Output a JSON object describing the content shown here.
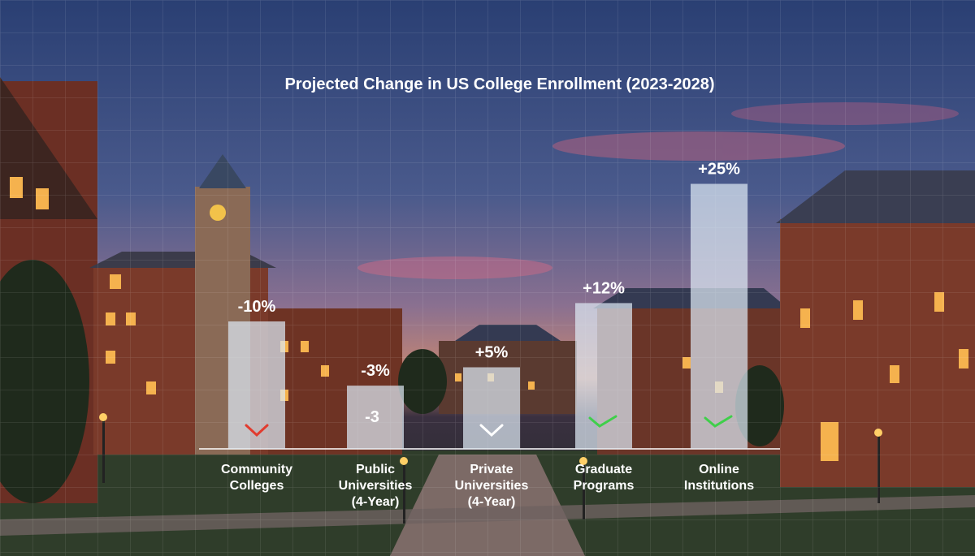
{
  "chart_data": {
    "type": "bar",
    "title": "Projected Change in US College Enrollment (2023-2028)",
    "categories": [
      [
        "Community",
        "Colleges"
      ],
      [
        "Public",
        "Universities",
        "(4-Year)"
      ],
      [
        "Private",
        "Universities",
        "(4-Year)"
      ],
      [
        "Graduate",
        "Programs"
      ],
      [
        "Online",
        "Institutions"
      ]
    ],
    "values": [
      -10,
      -3,
      5,
      12,
      25
    ],
    "value_labels": [
      "-10%",
      "-3%",
      "+5%",
      "+12%",
      "+25%"
    ],
    "inner_labels": [
      "",
      "-3",
      "",
      "",
      ""
    ],
    "trend_markers": [
      "down",
      "",
      "down",
      "up",
      "up"
    ],
    "colors": {
      "bar": "#dce8f2",
      "text": "#ffffff",
      "axis": "#ffffff",
      "marker_down_red": "#e23b2e",
      "marker_down_white": "#ffffff",
      "marker_up": "#3fcf4a"
    },
    "grid": true,
    "legend": "none"
  }
}
